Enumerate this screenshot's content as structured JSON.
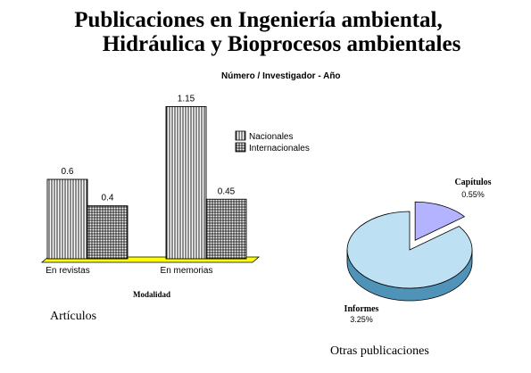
{
  "title_line1": "Publicaciones en Ingeniería ambiental,",
  "title_line2": "Hidráulica y Bioprocesos ambientales",
  "subtitle": "Número / Investigador - Año",
  "left_caption": "Artículos",
  "right_caption": "Otras publicaciones",
  "chart_data": [
    {
      "type": "bar",
      "categories": [
        "En revistas",
        "En memorias"
      ],
      "series": [
        {
          "name": "Nacionales",
          "values": [
            0.6,
            1.15
          ],
          "pattern": "vertical-lines"
        },
        {
          "name": "Internacionales",
          "values": [
            0.4,
            0.45
          ],
          "pattern": "grid"
        }
      ],
      "value_labels": [
        [
          "0.6",
          "1.15"
        ],
        [
          "0.4",
          "0.45"
        ]
      ],
      "xlabel": "Modalidad",
      "ylabel": "",
      "ylim": [
        0,
        1.2
      ],
      "grid": false,
      "legend_position": "right",
      "floor_color": "#ffff00",
      "bar_color": "#ffffff"
    },
    {
      "type": "pie",
      "slices": [
        {
          "label": "Capítulos",
          "value": 0.55,
          "value_label": "0.55%",
          "color": "#b3b3ff",
          "side_color": "#7a7ae6"
        },
        {
          "label": "Informes",
          "value": 3.25,
          "value_label": "3.25%",
          "color": "#bde0f2",
          "side_color": "#4f93b8"
        }
      ],
      "exploded_slice": "Capítulos",
      "three_d": true
    }
  ]
}
